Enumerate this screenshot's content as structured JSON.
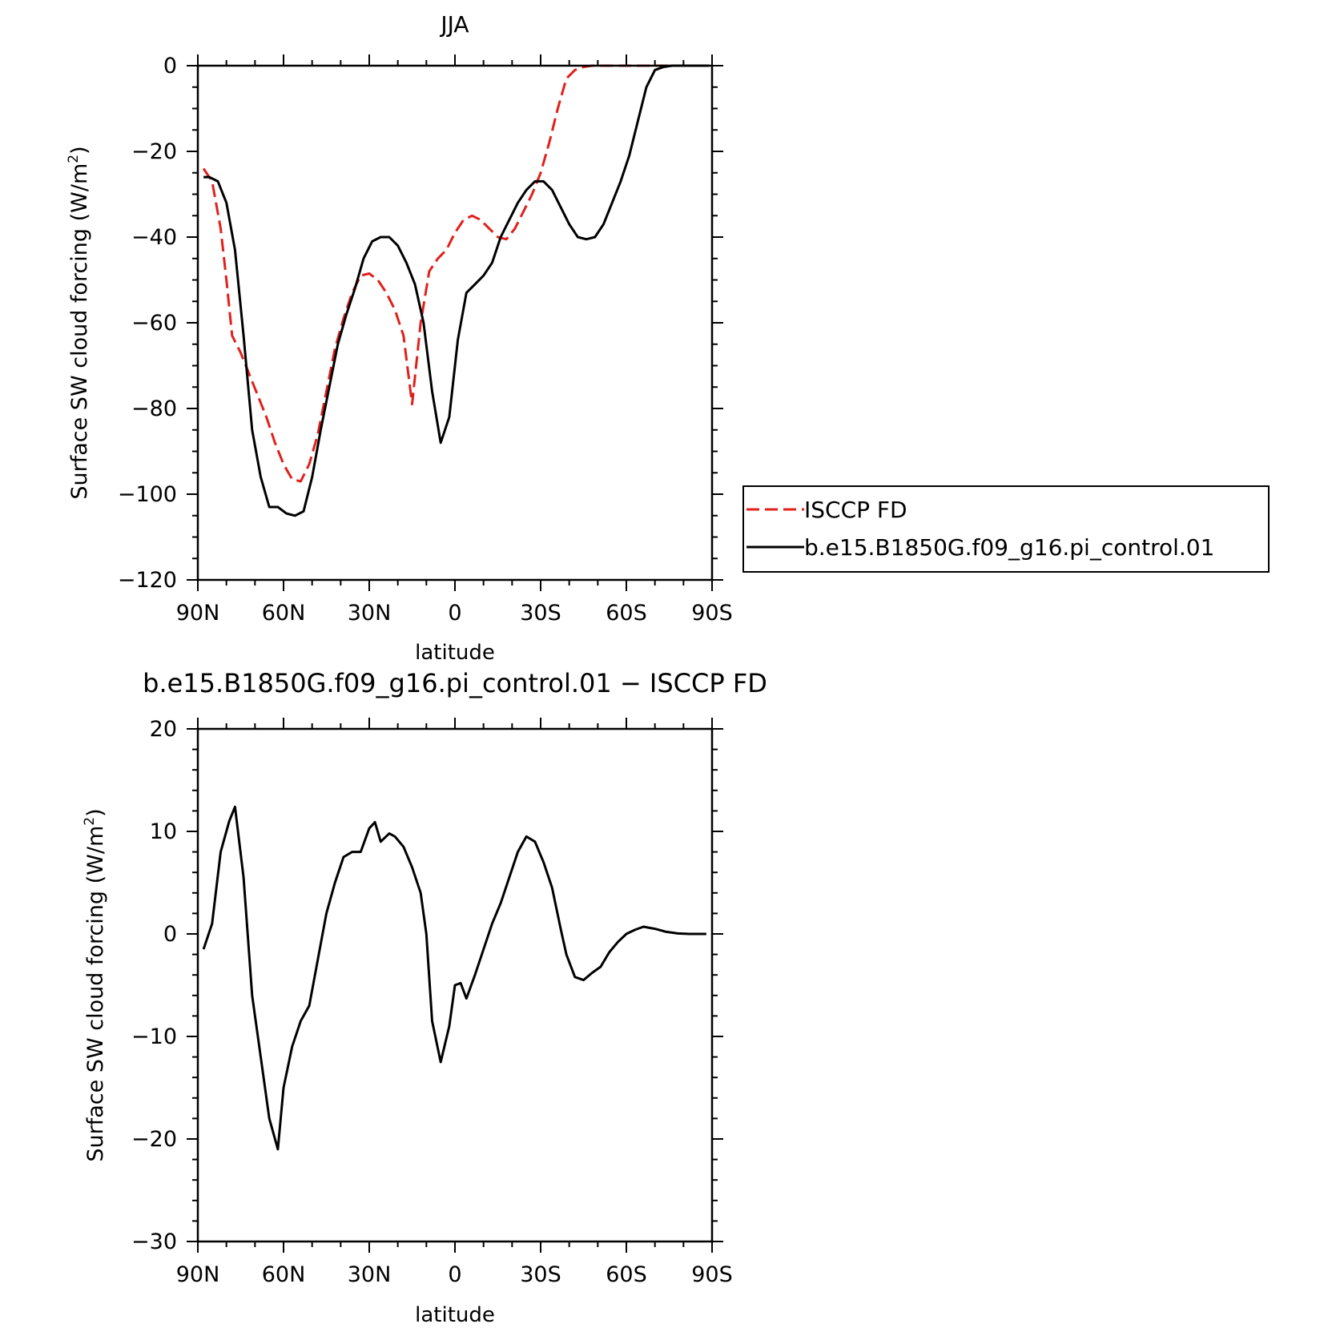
{
  "chart_data": [
    {
      "type": "line",
      "title": "JJA",
      "xlabel": "latitude",
      "ylabel_main": "Surface SW cloud forcing (W/m",
      "ylabel_sup": "2",
      "ylabel_close": ")",
      "xlim": [
        90,
        -90
      ],
      "ylim": [
        -120,
        0
      ],
      "xticks": [
        90,
        60,
        30,
        0,
        -30,
        -60,
        -90
      ],
      "xtick_labels": [
        "90N",
        "60N",
        "30N",
        "0",
        "30S",
        "60S",
        "90S"
      ],
      "yticks": [
        0,
        -20,
        -40,
        -60,
        -80,
        -100,
        -120
      ],
      "ytick_labels": [
        "0",
        "−20",
        "−40",
        "−60",
        "−80",
        "−100",
        "−120"
      ],
      "legend": "right",
      "series": [
        {
          "name": "ISCCP FD",
          "color": "#e0201b",
          "dash": true,
          "x": [
            88,
            85,
            82,
            80,
            78,
            75,
            72,
            69,
            66,
            63,
            60,
            57,
            54,
            51,
            48,
            45,
            42,
            39,
            36,
            33,
            30,
            27,
            24,
            21,
            18,
            15,
            12,
            9,
            6,
            3,
            0,
            -3,
            -6,
            -9,
            -12,
            -15,
            -18,
            -21,
            -24,
            -27,
            -30,
            -33,
            -36,
            -39,
            -42,
            -45,
            -48,
            -51,
            -54,
            -57,
            -60,
            -63,
            -66,
            -69,
            -72,
            -75,
            -78,
            -81,
            -84,
            -87,
            -89
          ],
          "y": [
            -24,
            -27,
            -38,
            -50,
            -63,
            -67,
            -72,
            -77,
            -82,
            -88,
            -93,
            -96.5,
            -97,
            -93,
            -86,
            -76,
            -66,
            -59,
            -53,
            -49,
            -48.5,
            -50,
            -53,
            -57,
            -63,
            -79,
            -60,
            -48,
            -45,
            -43,
            -39,
            -36,
            -35,
            -36,
            -38,
            -40,
            -40.5,
            -38,
            -34,
            -30,
            -25,
            -18,
            -10,
            -3,
            -1,
            -0.3,
            0,
            0,
            0,
            0,
            0,
            0,
            0,
            0,
            0,
            0,
            0,
            0,
            0,
            0,
            0
          ]
        },
        {
          "name": "b.e15.B1850G.f09_g16.pi_control.01",
          "color": "#000000",
          "dash": false,
          "x": [
            88,
            86,
            83,
            80,
            77,
            74,
            71,
            68,
            65,
            62,
            59,
            56,
            53,
            50,
            47,
            44,
            41,
            38,
            35,
            32,
            29,
            26,
            23,
            20,
            17,
            14,
            11,
            8,
            5,
            2,
            -1,
            -4,
            -7,
            -10,
            -13,
            -16,
            -19,
            -22,
            -25,
            -28,
            -31,
            -34,
            -37,
            -40,
            -43,
            -46,
            -49,
            -52,
            -55,
            -58,
            -61,
            -64,
            -67,
            -70,
            -73,
            -76,
            -80,
            -85,
            -89
          ],
          "y": [
            -26,
            -26,
            -27,
            -32,
            -43,
            -63,
            -85,
            -96,
            -103,
            -103,
            -104.5,
            -105,
            -104,
            -96,
            -85,
            -75,
            -65,
            -58,
            -52,
            -45,
            -41,
            -40,
            -40,
            -42,
            -46,
            -51,
            -60,
            -76,
            -88,
            -82,
            -64,
            -53,
            -51,
            -49,
            -46,
            -40,
            -36,
            -32,
            -29,
            -27,
            -27,
            -29,
            -33,
            -37,
            -40,
            -40.5,
            -40,
            -37,
            -32,
            -27,
            -21,
            -13,
            -5,
            -1,
            -0.3,
            0,
            0,
            0,
            0
          ]
        }
      ]
    },
    {
      "type": "line",
      "title": "b.e15.B1850G.f09_g16.pi_control.01 − ISCCP FD",
      "xlabel": "latitude",
      "ylabel_main": "Surface SW cloud forcing (W/m",
      "ylabel_sup": "2",
      "ylabel_close": ")",
      "xlim": [
        90,
        -90
      ],
      "ylim": [
        -30,
        20
      ],
      "xticks": [
        90,
        60,
        30,
        0,
        -30,
        -60,
        -90
      ],
      "xtick_labels": [
        "90N",
        "60N",
        "30N",
        "0",
        "30S",
        "60S",
        "90S"
      ],
      "yticks": [
        20,
        10,
        0,
        -10,
        -20,
        -30
      ],
      "ytick_labels": [
        "20",
        "10",
        "0",
        "−10",
        "−20",
        "−30"
      ],
      "series": [
        {
          "color": "#000000",
          "dash": false,
          "x": [
            88,
            85,
            82,
            79,
            77,
            74,
            71,
            68,
            65,
            62,
            60,
            57,
            54,
            51,
            48,
            45,
            42,
            39,
            36,
            33,
            30,
            28,
            26,
            23,
            21,
            18,
            15,
            12,
            10,
            8,
            5,
            2,
            0,
            -2,
            -4,
            -7,
            -10,
            -13,
            -16,
            -19,
            -22,
            -25,
            -28,
            -31,
            -34,
            -37,
            -39,
            -42,
            -45,
            -48,
            -51,
            -54,
            -57,
            -60,
            -63,
            -66,
            -70,
            -74,
            -78,
            -82,
            -86,
            -88
          ],
          "y": [
            -1.5,
            1,
            8,
            11,
            12.4,
            5.5,
            -6,
            -12,
            -18,
            -21,
            -15,
            -11,
            -8.5,
            -7,
            -2.5,
            2,
            5,
            7.5,
            8,
            8,
            10.3,
            10.9,
            9,
            9.8,
            9.5,
            8.5,
            6.5,
            4,
            0,
            -8.5,
            -12.5,
            -9,
            -5,
            -4.8,
            -6.3,
            -4,
            -1.5,
            1,
            3,
            5.5,
            8,
            9.5,
            9,
            7,
            4.5,
            0.5,
            -2,
            -4.2,
            -4.5,
            -3.8,
            -3.2,
            -1.8,
            -0.8,
            0,
            0.4,
            0.7,
            0.5,
            0.2,
            0.05,
            0,
            0,
            0
          ]
        }
      ]
    }
  ]
}
